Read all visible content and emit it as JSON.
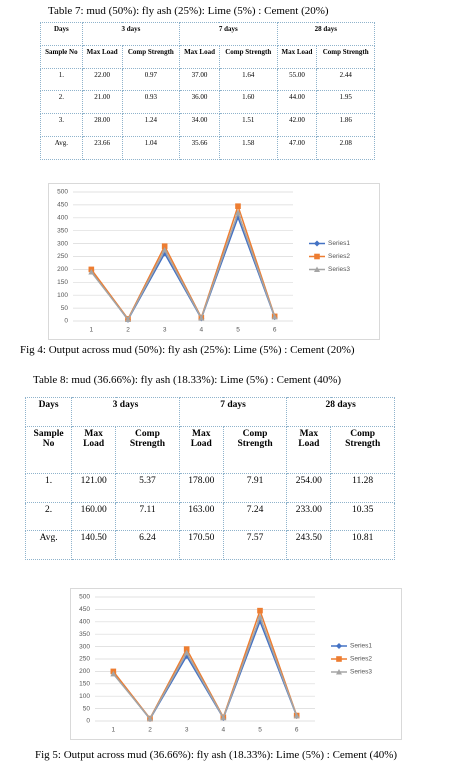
{
  "tables": [
    {
      "caption": "Table 7: mud (50%): fly ash (25%): Lime (5%) : Cement (20%)",
      "header": [
        "Days",
        "3 days",
        "7 days",
        "28 days"
      ],
      "subheader": [
        "Sample No",
        "Max Load",
        "Comp Strength",
        "Max Load",
        "Comp Strength",
        "Max Load",
        "Comp Strength"
      ],
      "rows": [
        [
          "1.",
          "22.00",
          "0.97",
          "37.00",
          "1.64",
          "55.00",
          "2.44"
        ],
        [
          "2.",
          "21.00",
          "0.93",
          "36.00",
          "1.60",
          "44.00",
          "1.95"
        ],
        [
          "3.",
          "28.00",
          "1.24",
          "34.00",
          "1.51",
          "42.00",
          "1.86"
        ],
        [
          "Avg.",
          "23.66",
          "1.04",
          "35.66",
          "1.58",
          "47.00",
          "2.08"
        ]
      ]
    },
    {
      "caption": "Table 8: mud (36.66%): fly ash (18.33%): Lime (5%) : Cement (40%)",
      "header": [
        "Days",
        "3 days",
        "7 days",
        "28 days"
      ],
      "subheader": [
        "Sample No",
        "Max Load",
        "Comp Strength",
        "Max Load",
        "Comp Strength",
        "Max Load",
        "Comp Strength"
      ],
      "rows": [
        [
          "1.",
          "121.00",
          "5.37",
          "178.00",
          "7.91",
          "254.00",
          "11.28"
        ],
        [
          "2.",
          "160.00",
          "7.11",
          "163.00",
          "7.24",
          "233.00",
          "10.35"
        ],
        [
          "Avg.",
          "140.50",
          "6.24",
          "170.50",
          "7.57",
          "243.50",
          "10.81"
        ]
      ]
    }
  ],
  "chart_data": [
    {
      "type": "line",
      "caption": "Fig 4: Output across mud (50%): fly ash (25%): Lime (5%) : Cement (20%)",
      "categories": [
        "1",
        "2",
        "3",
        "4",
        "5",
        "6"
      ],
      "series": [
        {
          "name": "Series1",
          "color": "#4472c4",
          "values": [
            195,
            5,
            262,
            10,
            402,
            15
          ]
        },
        {
          "name": "Series2",
          "color": "#ed7d31",
          "values": [
            200,
            8,
            290,
            13,
            445,
            18
          ]
        },
        {
          "name": "Series3",
          "color": "#a5a5a5",
          "values": [
            190,
            6,
            275,
            11,
            420,
            16
          ]
        }
      ],
      "ylim": [
        0,
        500
      ],
      "yticks": [
        0,
        50,
        100,
        150,
        200,
        250,
        300,
        350,
        400,
        450,
        500
      ],
      "grid": true,
      "legend": "right"
    },
    {
      "type": "line",
      "caption": "Fig 5: Output across mud (36.66%): fly ash (18.33%): Lime (5%) : Cement (40%)",
      "categories": [
        "1",
        "2",
        "3",
        "4",
        "5",
        "6"
      ],
      "series": [
        {
          "name": "Series1",
          "color": "#4472c4",
          "values": [
            195,
            8,
            262,
            12,
            402,
            20
          ]
        },
        {
          "name": "Series2",
          "color": "#ed7d31",
          "values": [
            200,
            10,
            290,
            15,
            445,
            22
          ]
        },
        {
          "name": "Series3",
          "color": "#a5a5a5",
          "values": [
            190,
            9,
            275,
            13,
            420,
            21
          ]
        }
      ],
      "ylim": [
        0,
        500
      ],
      "yticks": [
        0,
        50,
        100,
        150,
        200,
        250,
        300,
        350,
        400,
        450,
        500
      ],
      "grid": true,
      "legend": "right"
    }
  ]
}
